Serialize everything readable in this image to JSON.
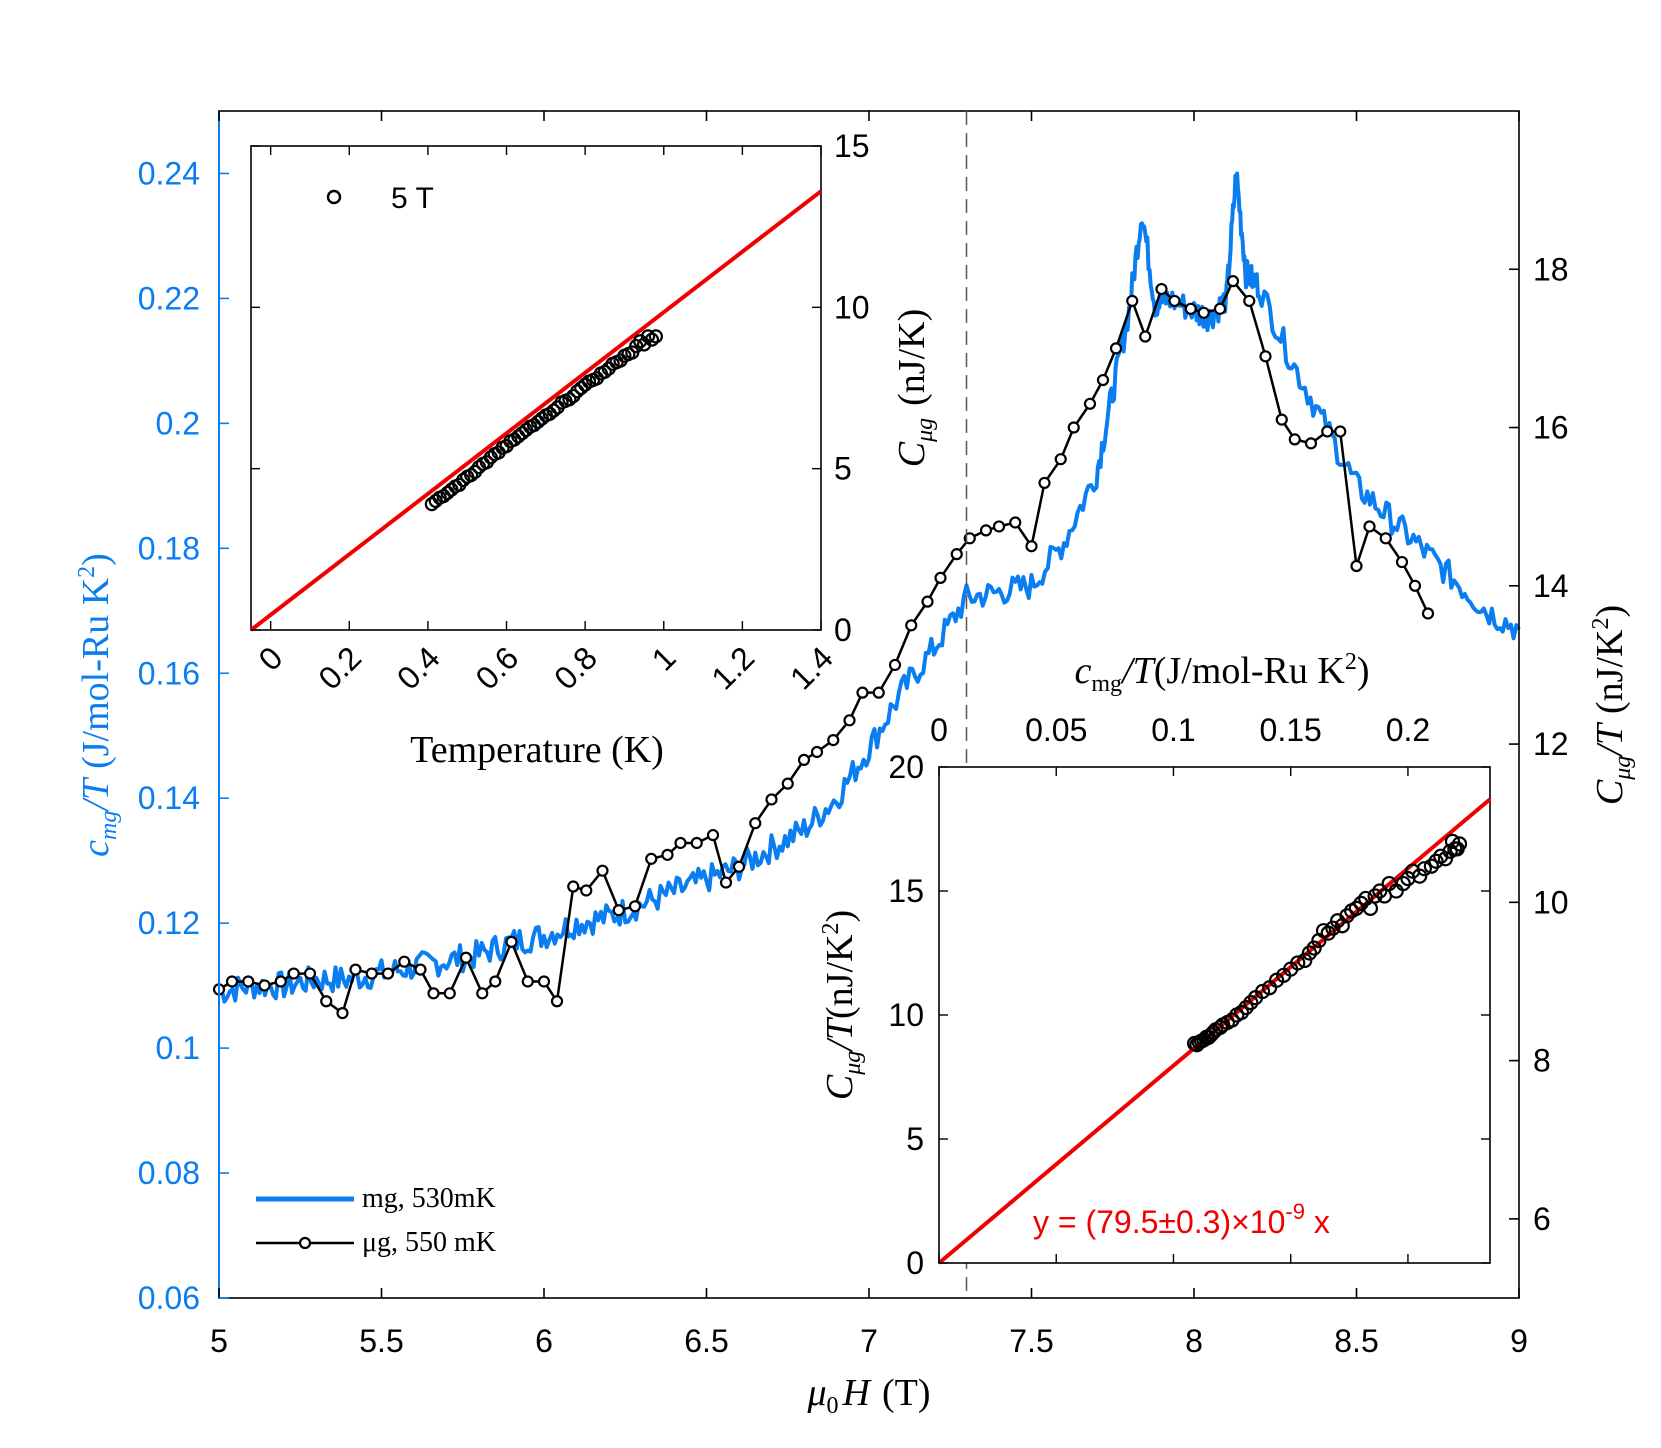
{
  "colors": {
    "mg_line": "#0a7ef0",
    "mu_line": "#000000",
    "fit_line": "#f00000",
    "left_axis": "#0a7ef0",
    "axis": "#000000"
  },
  "chart_data": [
    {
      "type": "line",
      "xlabel_prefix": "μ",
      "xlabel_sub": "0",
      "xlabel_main": "H",
      "xlabel_unit": "(T)",
      "ylabel_left": {
        "c": "c",
        "sub": "mg",
        "rest": "/T",
        "unit": "(J/mol-Ru K",
        "sup": "2",
        "close": ")"
      },
      "ylabel_right": {
        "c": "C",
        "sub": "μg",
        "rest": "/T",
        "unit": "(nJ/K",
        "sup": "2",
        "close": ")"
      },
      "xlim": [
        5,
        9
      ],
      "ylim_left": [
        0.06,
        0.25
      ],
      "ylim_right": [
        5,
        20
      ],
      "xticks": [
        "5",
        "5.5",
        "6",
        "6.5",
        "7",
        "7.5",
        "8",
        "8.5",
        "9"
      ],
      "yticks_left": [
        "0.06",
        "0.08",
        "0.1",
        "0.12",
        "0.14",
        "0.16",
        "0.18",
        "0.2",
        "0.22",
        "0.24"
      ],
      "yticks_right": [
        "6",
        "8",
        "10",
        "12",
        "14",
        "16",
        "18"
      ],
      "dashed_vline_x": 7.3,
      "legend": {
        "placement": "bottom-left",
        "entries": [
          "mg, 530mK",
          "μg, 550 mK"
        ]
      },
      "series": [
        {
          "name": "mg, 530mK",
          "axis": "left",
          "x": [
            5.0,
            5.1,
            5.2,
            5.3,
            5.4,
            5.5,
            5.6,
            5.7,
            5.8,
            5.9,
            6.0,
            6.1,
            6.2,
            6.3,
            6.4,
            6.5,
            6.6,
            6.7,
            6.8,
            6.9,
            7.0,
            7.1,
            7.2,
            7.3,
            7.4,
            7.5,
            7.6,
            7.7,
            7.75,
            7.8,
            7.84,
            7.88,
            7.92,
            8.0,
            8.05,
            8.1,
            8.13,
            8.16,
            8.2,
            8.3,
            8.4,
            8.5,
            8.6,
            8.7,
            8.8,
            8.9,
            9.0
          ],
          "y": [
            0.109,
            0.11,
            0.11,
            0.111,
            0.111,
            0.112,
            0.113,
            0.114,
            0.115,
            0.117,
            0.118,
            0.12,
            0.121,
            0.123,
            0.125,
            0.127,
            0.129,
            0.132,
            0.135,
            0.14,
            0.148,
            0.157,
            0.164,
            0.172,
            0.173,
            0.174,
            0.181,
            0.192,
            0.205,
            0.218,
            0.234,
            0.219,
            0.22,
            0.218,
            0.217,
            0.22,
            0.24,
            0.224,
            0.222,
            0.21,
            0.2,
            0.19,
            0.185,
            0.18,
            0.175,
            0.17,
            0.167
          ]
        },
        {
          "name": "μg, 550 mK",
          "axis": "right",
          "x": [
            5.0,
            5.04,
            5.09,
            5.14,
            5.19,
            5.23,
            5.28,
            5.33,
            5.38,
            5.42,
            5.47,
            5.52,
            5.57,
            5.62,
            5.66,
            5.71,
            5.76,
            5.81,
            5.85,
            5.9,
            5.95,
            6.0,
            6.04,
            6.09,
            6.13,
            6.18,
            6.23,
            6.28,
            6.33,
            6.38,
            6.42,
            6.47,
            6.52,
            6.56,
            6.6,
            6.65,
            6.7,
            6.75,
            6.8,
            6.84,
            6.89,
            6.94,
            6.98,
            7.03,
            7.08,
            7.13,
            7.18,
            7.22,
            7.27,
            7.31,
            7.36,
            7.4,
            7.45,
            7.5,
            7.54,
            7.59,
            7.63,
            7.68,
            7.72,
            7.76,
            7.81,
            7.85,
            7.9,
            7.94,
            7.99,
            8.03,
            8.08,
            8.12,
            8.17,
            8.22,
            8.27,
            8.31,
            8.36,
            8.41,
            8.45,
            8.5,
            8.54,
            8.59,
            8.64,
            8.68,
            8.72
          ],
          "y": [
            8.9,
            9.0,
            9.0,
            8.95,
            9.0,
            9.1,
            9.1,
            8.75,
            8.6,
            9.15,
            9.1,
            9.1,
            9.25,
            9.15,
            8.85,
            8.85,
            9.3,
            8.85,
            9.0,
            9.5,
            9.0,
            9.0,
            8.75,
            10.2,
            10.15,
            10.4,
            9.9,
            9.95,
            10.55,
            10.6,
            10.75,
            10.75,
            10.85,
            10.25,
            10.45,
            11.0,
            11.3,
            11.5,
            11.8,
            11.9,
            12.05,
            12.3,
            12.65,
            12.65,
            13.0,
            13.5,
            13.8,
            14.1,
            14.4,
            14.6,
            14.7,
            14.75,
            14.8,
            14.5,
            15.3,
            15.6,
            16.0,
            16.3,
            16.6,
            17.0,
            17.6,
            17.15,
            17.75,
            17.6,
            17.5,
            17.45,
            17.5,
            17.85,
            17.6,
            16.9,
            16.1,
            15.85,
            15.8,
            15.95,
            15.95,
            14.25,
            14.75,
            14.6,
            14.3,
            14.0,
            13.65
          ]
        }
      ]
    },
    {
      "type": "scatter",
      "xlabel": "Temperature (K)",
      "ylabel": {
        "c": "C",
        "sub": "μg",
        "unit": "(nJ/K)"
      },
      "xlim": [
        -0.05,
        1.4
      ],
      "ylim": [
        0,
        15
      ],
      "xticks": [
        "0",
        "0.2",
        "0.4",
        "0.6",
        "0.8",
        "1",
        "1.2",
        "1.4"
      ],
      "yticks": [
        "0",
        "5",
        "10",
        "15"
      ],
      "legend": {
        "placement": "top-left",
        "entries": [
          "5 T"
        ]
      },
      "series": [
        {
          "name": "5 T",
          "x": [
            0.41,
            0.42,
            0.43,
            0.44,
            0.45,
            0.46,
            0.47,
            0.48,
            0.49,
            0.5,
            0.51,
            0.52,
            0.53,
            0.54,
            0.55,
            0.56,
            0.57,
            0.58,
            0.59,
            0.6,
            0.61,
            0.62,
            0.63,
            0.64,
            0.65,
            0.66,
            0.67,
            0.68,
            0.69,
            0.7,
            0.71,
            0.72,
            0.73,
            0.74,
            0.75,
            0.76,
            0.77,
            0.78,
            0.79,
            0.8,
            0.81,
            0.82,
            0.83,
            0.84,
            0.85,
            0.86,
            0.87,
            0.88,
            0.89,
            0.9,
            0.91,
            0.92,
            0.93,
            0.94,
            0.95,
            0.96,
            0.97,
            0.98
          ],
          "y": [
            3.9,
            4.0,
            4.1,
            4.15,
            4.25,
            4.35,
            4.45,
            4.5,
            4.65,
            4.75,
            4.8,
            4.9,
            5.05,
            5.15,
            5.2,
            5.35,
            5.45,
            5.5,
            5.65,
            5.7,
            5.85,
            5.9,
            6.0,
            6.1,
            6.2,
            6.3,
            6.35,
            6.45,
            6.55,
            6.65,
            6.7,
            6.8,
            6.9,
            7.05,
            7.1,
            7.15,
            7.25,
            7.4,
            7.5,
            7.6,
            7.7,
            7.75,
            7.8,
            7.95,
            8.0,
            8.1,
            8.25,
            8.3,
            8.35,
            8.5,
            8.55,
            8.6,
            8.8,
            8.95,
            8.85,
            9.1,
            9.0,
            9.1
          ]
        },
        {
          "name": "",
          "kind": "fit-line",
          "x": [
            -0.05,
            1.4
          ],
          "y": [
            0,
            13.6
          ]
        }
      ]
    },
    {
      "type": "scatter",
      "xlabel": {
        "c": "c",
        "sub": "mg",
        "rest": "/T",
        "unit": "(J/mol-Ru K",
        "sup": "2",
        "close": ")"
      },
      "ylabel": {
        "c": "C",
        "sub": "μg",
        "rest": "/T",
        "unit": "(nJ/K",
        "sup": "2",
        "close": ")"
      },
      "xlim": [
        0,
        0.235
      ],
      "ylim": [
        0,
        20
      ],
      "xticks": [
        "0",
        "0.05",
        "0.1",
        "0.15",
        "0.2"
      ],
      "yticks": [
        "0",
        "5",
        "10",
        "15",
        "20"
      ],
      "annotation": {
        "text": "y = (79.5±0.3)×10",
        "exp": "-9",
        "tail": " x"
      },
      "series": [
        {
          "name": "",
          "x": [
            0.109,
            0.11,
            0.111,
            0.112,
            0.113,
            0.114,
            0.115,
            0.116,
            0.117,
            0.118,
            0.12,
            0.121,
            0.123,
            0.125,
            0.127,
            0.129,
            0.131,
            0.133,
            0.135,
            0.138,
            0.141,
            0.144,
            0.147,
            0.15,
            0.153,
            0.156,
            0.158,
            0.16,
            0.162,
            0.164,
            0.166,
            0.168,
            0.17,
            0.172,
            0.174,
            0.176,
            0.178,
            0.18,
            0.182,
            0.184,
            0.186,
            0.188,
            0.19,
            0.192,
            0.195,
            0.198,
            0.2,
            0.202,
            0.205,
            0.207,
            0.21,
            0.212,
            0.214,
            0.216,
            0.218,
            0.219,
            0.22,
            0.221,
            0.222
          ],
          "y": [
            8.85,
            8.8,
            8.9,
            8.95,
            9.0,
            9.1,
            9.1,
            9.2,
            9.3,
            9.4,
            9.5,
            9.6,
            9.7,
            9.8,
            10.0,
            10.1,
            10.3,
            10.5,
            10.7,
            10.95,
            11.1,
            11.4,
            11.6,
            11.85,
            12.1,
            12.2,
            12.5,
            12.7,
            13.0,
            13.4,
            13.3,
            13.5,
            13.8,
            13.6,
            14.0,
            14.2,
            14.3,
            14.5,
            14.7,
            14.3,
            14.8,
            15.0,
            14.8,
            15.3,
            15.0,
            15.3,
            15.5,
            15.8,
            15.6,
            15.9,
            16.0,
            16.2,
            16.4,
            16.3,
            16.6,
            17.0,
            16.7,
            16.7,
            16.9
          ]
        },
        {
          "name": "",
          "kind": "fit-line",
          "x": [
            0,
            0.235
          ],
          "y": [
            0,
            18.7
          ]
        }
      ]
    }
  ]
}
